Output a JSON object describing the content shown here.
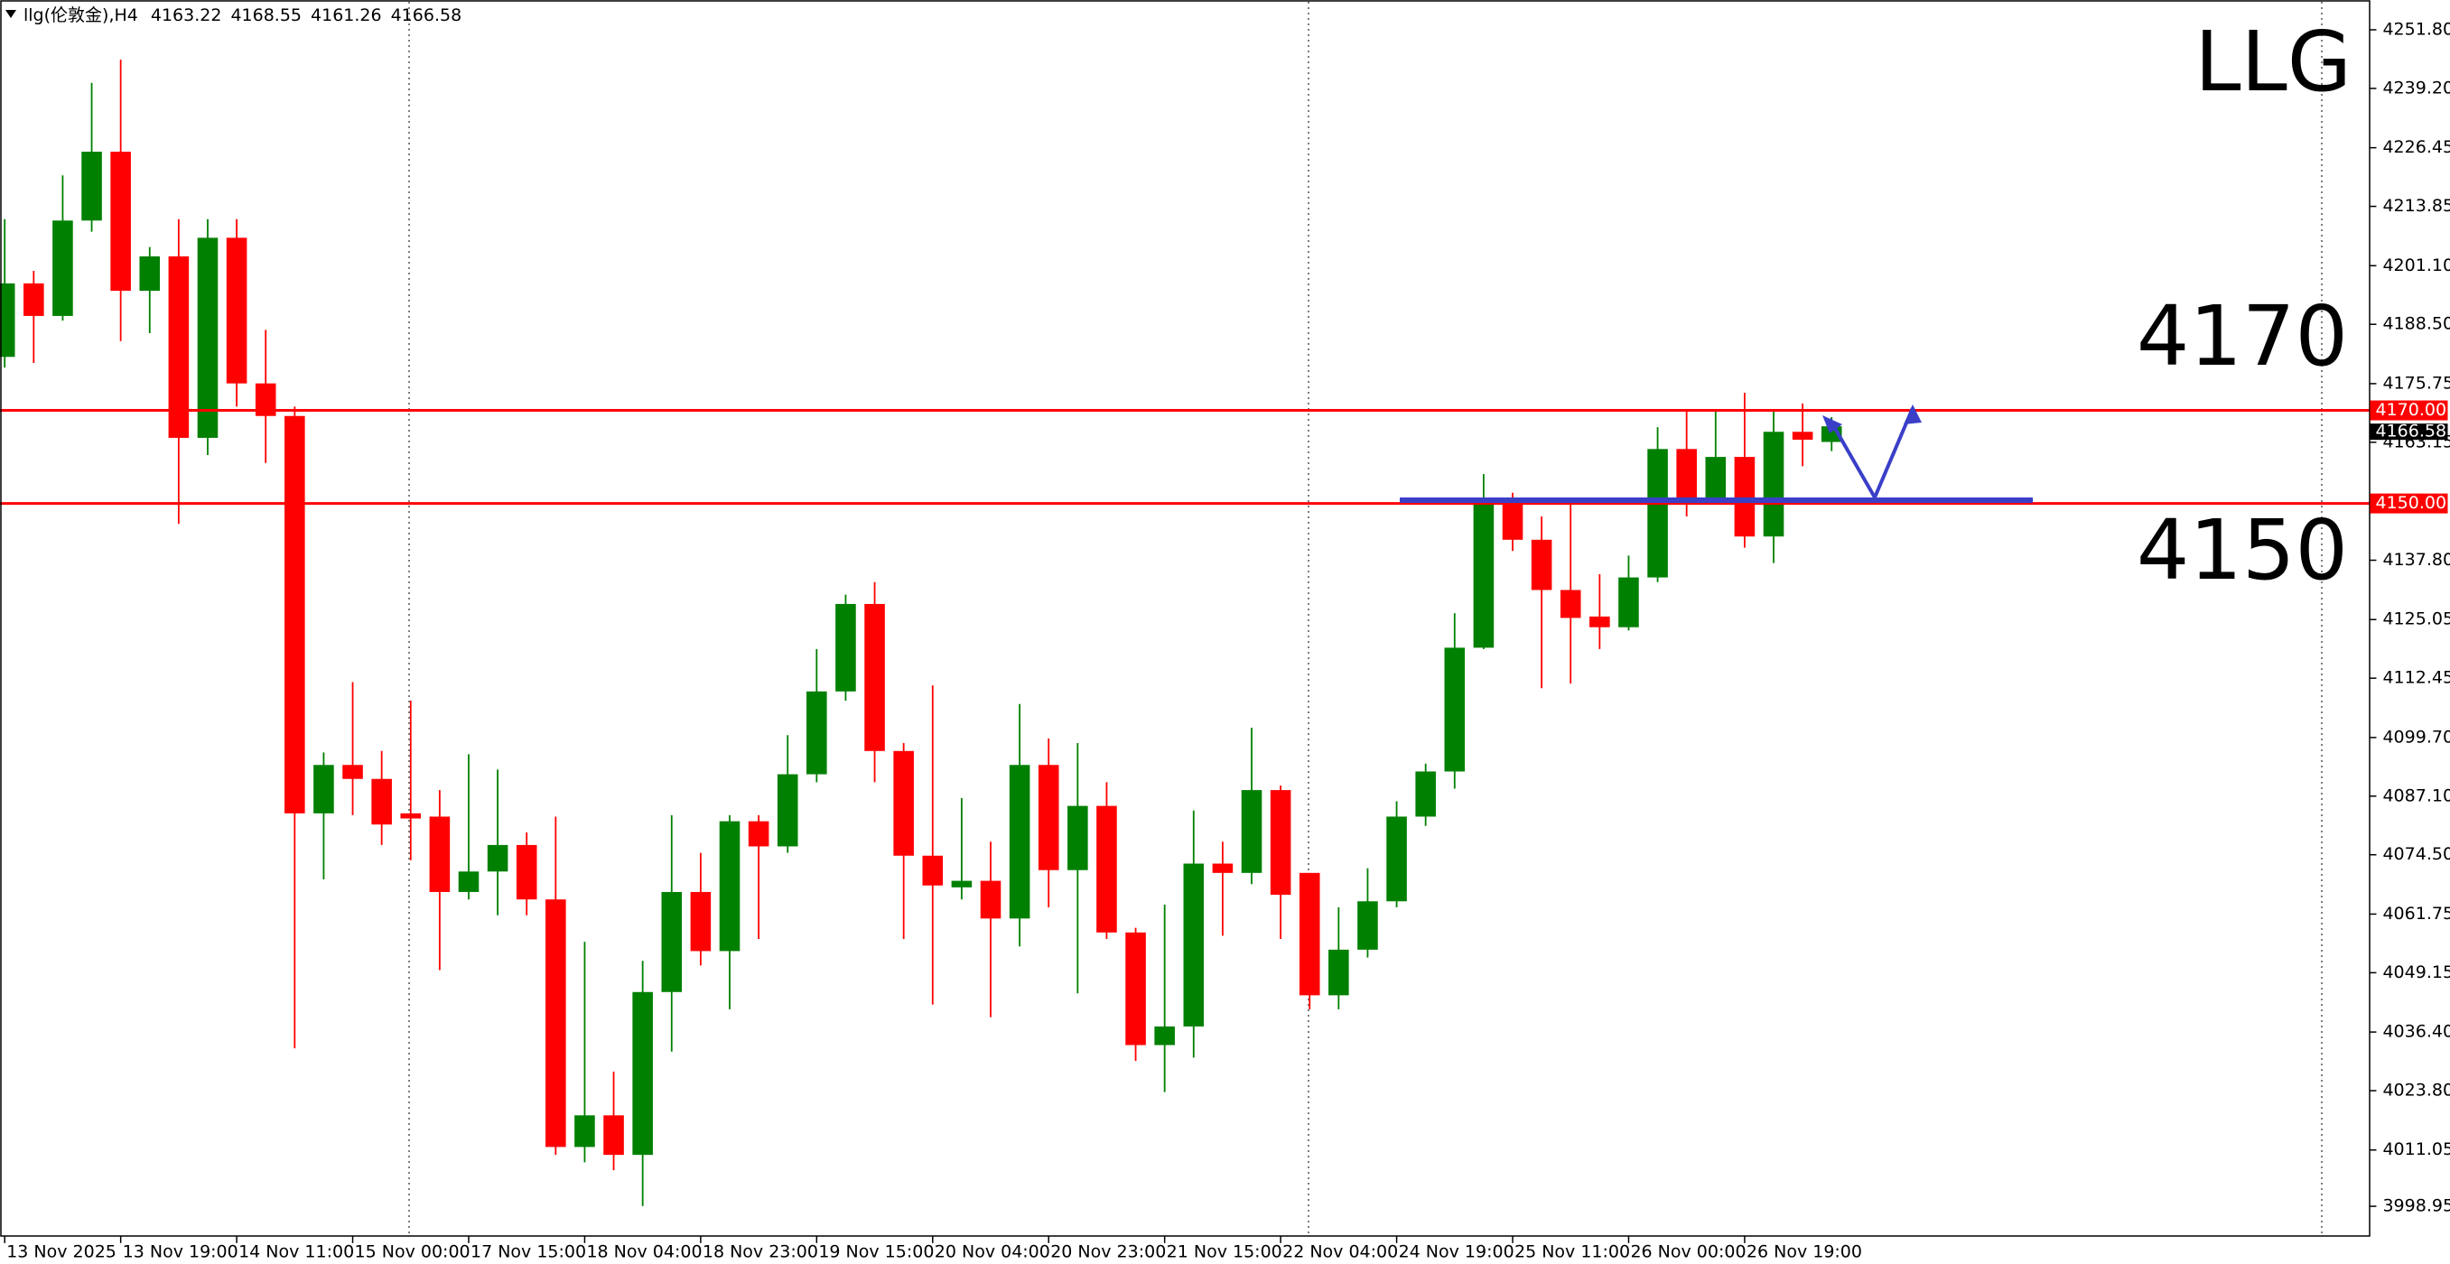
{
  "chart_data": {
    "type": "candlestick",
    "symbol": "llg(伦敦金),H4",
    "annotation": "LLG",
    "categories": [
      "13 Nov 2025",
      null,
      null,
      null,
      "13 Nov 19:00",
      null,
      null,
      null,
      "14 Nov 11:00",
      null,
      null,
      null,
      "15 Nov 00:00",
      null,
      null,
      null,
      "17 Nov 15:00",
      null,
      null,
      null,
      "18 Nov 04:00",
      null,
      null,
      null,
      "18 Nov 23:00",
      null,
      null,
      null,
      "19 Nov 15:00",
      null,
      null,
      null,
      "20 Nov 04:00",
      null,
      null,
      null,
      "20 Nov 23:00",
      null,
      null,
      null,
      "21 Nov 15:00",
      null,
      null,
      null,
      "22 Nov 04:00",
      null,
      null,
      null,
      "24 Nov 19:00",
      null,
      null,
      null,
      "25 Nov 11:00",
      null,
      null,
      null,
      "26 Nov 00:00",
      null,
      null,
      null,
      "26 Nov 19:00",
      null,
      null,
      null
    ],
    "open": [
      4181.5,
      4197.3,
      4190.3,
      4210.8,
      4225.6,
      4195.7,
      4203.1,
      4164.1,
      4207.1,
      4175.8,
      4168.8,
      4083.4,
      4093.8,
      4090.8,
      4083.4,
      4082.7,
      4066.5,
      4070.9,
      4076.6,
      4064.9,
      4011.7,
      4018.5,
      4010.0,
      4045.0,
      4066.5,
      4053.8,
      4081.7,
      4076.3,
      4091.8,
      4109.6,
      4128.4,
      4096.8,
      4074.3,
      4067.5,
      4068.9,
      4060.8,
      4093.8,
      4071.2,
      4085.0,
      4057.8,
      4033.6,
      4037.6,
      4072.6,
      4070.6,
      4088.4,
      4070.6,
      4044.3,
      4054.1,
      4064.5,
      4082.7,
      4092.4,
      4119.0,
      4150.6,
      4142.2,
      4131.4,
      4125.7,
      4123.4,
      4134.1,
      4161.7,
      4150.6,
      4160.0,
      4142.9,
      4165.4,
      4163.22
    ],
    "high": [
      4211.1,
      4200.0,
      4220.5,
      4240.4,
      4245.4,
      4205.1,
      4211.1,
      4211.1,
      4211.1,
      4187.3,
      4170.8,
      4096.5,
      4111.6,
      4096.8,
      4107.6,
      4088.4,
      4096.1,
      4092.8,
      4079.3,
      4082.7,
      4055.8,
      4027.9,
      4051.7,
      4083.0,
      4074.9,
      4083.0,
      4083.0,
      4100.2,
      4118.7,
      4130.4,
      4133.1,
      4098.5,
      4110.9,
      4086.7,
      4077.3,
      4106.9,
      4099.5,
      4098.5,
      4090.1,
      4058.8,
      4063.8,
      4084.0,
      4077.3,
      4101.8,
      4089.4,
      4070.6,
      4063.2,
      4071.6,
      4086.0,
      4094.1,
      4126.4,
      4156.3,
      4152.3,
      4147.2,
      4149.9,
      4134.8,
      4138.8,
      4166.4,
      4169.8,
      4169.8,
      4173.8,
      4169.8,
      4171.5,
      4168.55
    ],
    "low": [
      4179.2,
      4180.2,
      4189.3,
      4208.4,
      4184.9,
      4186.6,
      4145.6,
      4160.4,
      4170.8,
      4158.7,
      4032.9,
      4069.2,
      4083.0,
      4076.6,
      4073.3,
      4049.7,
      4064.9,
      4061.5,
      4061.5,
      4010.0,
      4008.4,
      4006.7,
      3999.0,
      4032.2,
      4050.7,
      4041.3,
      4056.4,
      4074.9,
      4090.1,
      4107.6,
      4090.1,
      4056.4,
      4042.3,
      4064.9,
      4039.6,
      4054.8,
      4063.2,
      4044.7,
      4056.4,
      4030.2,
      4023.5,
      4030.9,
      4057.1,
      4068.2,
      4056.4,
      4041.3,
      4041.3,
      4052.4,
      4063.2,
      4080.7,
      4088.7,
      4118.7,
      4139.8,
      4110.3,
      4111.3,
      4118.7,
      4122.7,
      4133.1,
      4147.2,
      4149.9,
      4140.5,
      4137.2,
      4158.0,
      4161.26
    ],
    "close": [
      4197.3,
      4190.3,
      4210.8,
      4225.6,
      4195.7,
      4203.1,
      4164.1,
      4207.1,
      4175.8,
      4168.8,
      4083.4,
      4093.8,
      4090.8,
      4081.0,
      4082.3,
      4066.5,
      4070.9,
      4076.6,
      4064.9,
      4011.7,
      4018.5,
      4010.0,
      4045.0,
      4066.5,
      4053.8,
      4081.7,
      4076.3,
      4091.8,
      4109.6,
      4128.4,
      4096.8,
      4074.3,
      4067.9,
      4068.9,
      4060.8,
      4093.8,
      4071.2,
      4085.0,
      4057.8,
      4033.6,
      4037.6,
      4072.6,
      4070.6,
      4088.4,
      4065.9,
      4044.3,
      4054.1,
      4064.5,
      4082.7,
      4092.4,
      4119.0,
      4150.6,
      4142.2,
      4131.4,
      4125.4,
      4123.4,
      4134.1,
      4161.7,
      4150.6,
      4160.0,
      4142.9,
      4165.4,
      4163.7,
      4166.58
    ],
    "up_color": "#008000",
    "down_color": "#ff0000",
    "hlines": [
      {
        "value": 4170,
        "label": "4170.00",
        "color": "#ff0000"
      },
      {
        "value": 4150,
        "label": "4150.00",
        "color": "#ff0000"
      }
    ],
    "ylim": [
      3992.6,
      4258.2
    ],
    "yticks": [
      {
        "value": 4251.8,
        "label": "4251.80"
      },
      {
        "value": 4239.2,
        "label": "4239.20"
      },
      4226.45,
      4213.85,
      {
        "value": 4201.1,
        "label": "4201.10"
      },
      {
        "value": 4188.5,
        "label": "4188.50"
      },
      4175.75,
      4163.15,
      {
        "value": 4137.8,
        "label": "4137.80"
      },
      4125.05,
      4112.45,
      {
        "value": 4099.7,
        "label": "4099.70"
      },
      {
        "value": 4087.1,
        "label": "4087.10"
      },
      {
        "value": 4074.5,
        "label": "4074.50"
      },
      4061.75,
      4049.15,
      {
        "value": 4036.4,
        "label": "4036.40"
      },
      {
        "value": 4023.8,
        "label": "4023.80"
      },
      4011.05,
      3998.95
    ],
    "grid": false
  }
}
